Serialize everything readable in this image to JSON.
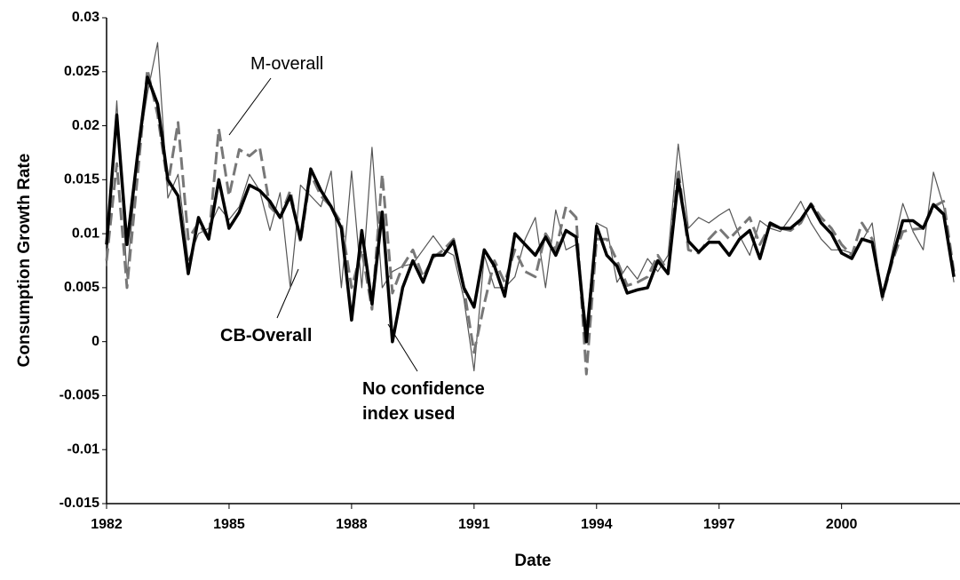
{
  "chart_data": {
    "type": "line",
    "xlabel": "Date",
    "ylabel": "Consumption Growth Rate",
    "x": [
      1982,
      1982.25,
      1982.5,
      1982.75,
      1983,
      1983.25,
      1983.5,
      1983.75,
      1984,
      1984.25,
      1984.5,
      1984.75,
      1985,
      1985.25,
      1985.5,
      1985.75,
      1986,
      1986.25,
      1986.5,
      1986.75,
      1987,
      1987.25,
      1987.5,
      1987.75,
      1988,
      1988.25,
      1988.5,
      1988.75,
      1989,
      1989.25,
      1989.5,
      1989.75,
      1990,
      1990.25,
      1990.5,
      1990.75,
      1991,
      1991.25,
      1991.5,
      1991.75,
      1992,
      1992.25,
      1992.5,
      1992.75,
      1993,
      1993.25,
      1993.5,
      1993.75,
      1994,
      1994.25,
      1994.5,
      1994.75,
      1995,
      1995.25,
      1995.5,
      1995.75,
      1996,
      1996.25,
      1996.5,
      1996.75,
      1997,
      1997.25,
      1997.5,
      1997.75,
      1998,
      1998.25,
      1998.5,
      1998.75,
      1999,
      1999.25,
      1999.5,
      1999.75,
      2000,
      2000.25,
      2000.5,
      2000.75,
      2001,
      2001.25,
      2001.5,
      2001.75,
      2002,
      2002.25,
      2002.5,
      2002.75
    ],
    "series": [
      {
        "name": "No confidence index used",
        "color": "#000000",
        "width": 3.5,
        "dash": false,
        "values": [
          0.009,
          0.021,
          0.009,
          0.017,
          0.0245,
          0.022,
          0.015,
          0.0135,
          0.0063,
          0.0115,
          0.0095,
          0.015,
          0.0105,
          0.012,
          0.0145,
          0.014,
          0.013,
          0.0115,
          0.0135,
          0.0095,
          0.016,
          0.014,
          0.0125,
          0.0105,
          0.002,
          0.0103,
          0.0035,
          0.012,
          0.0,
          0.005,
          0.0075,
          0.0055,
          0.008,
          0.008,
          0.0093,
          0.005,
          0.0032,
          0.0085,
          0.007,
          0.0042,
          0.01,
          0.009,
          0.008,
          0.0097,
          0.008,
          0.0103,
          0.0097,
          0.0,
          0.0107,
          0.008,
          0.007,
          0.0045,
          0.0048,
          0.005,
          0.0075,
          0.0063,
          0.015,
          0.0093,
          0.0083,
          0.0092,
          0.0092,
          0.008,
          0.0095,
          0.0103,
          0.0077,
          0.011,
          0.0105,
          0.0105,
          0.0113,
          0.0127,
          0.011,
          0.01,
          0.0082,
          0.0077,
          0.0095,
          0.0092,
          0.0042,
          0.0078,
          0.0112,
          0.0112,
          0.0105,
          0.0127,
          0.0118,
          0.006
        ]
      },
      {
        "name": "M-overall",
        "color": "#777777",
        "width": 3,
        "dash": true,
        "values": [
          0.0075,
          0.0165,
          0.005,
          0.015,
          0.0252,
          0.021,
          0.0145,
          0.0203,
          0.0095,
          0.011,
          0.0095,
          0.0197,
          0.0135,
          0.0178,
          0.0172,
          0.018,
          0.0125,
          0.0115,
          0.014,
          0.0092,
          0.0155,
          0.0135,
          0.0125,
          0.011,
          0.005,
          0.0085,
          0.003,
          0.0155,
          0.0045,
          0.007,
          0.0085,
          0.006,
          0.0078,
          0.0085,
          0.0095,
          0.005,
          -0.001,
          0.0035,
          0.0075,
          0.0055,
          0.0085,
          0.0065,
          0.006,
          0.01,
          0.0085,
          0.0125,
          0.0115,
          -0.003,
          0.0095,
          0.0095,
          0.0075,
          0.0052,
          0.0055,
          0.006,
          0.008,
          0.0065,
          0.016,
          0.0085,
          0.0082,
          0.0095,
          0.0105,
          0.0095,
          0.0105,
          0.0115,
          0.009,
          0.0108,
          0.0105,
          0.0103,
          0.011,
          0.0128,
          0.0115,
          0.0105,
          0.009,
          0.008,
          0.011,
          0.0095,
          0.004,
          0.0075,
          0.0102,
          0.0104,
          0.0105,
          0.0125,
          0.013,
          0.0065
        ]
      },
      {
        "name": "CB-Overall",
        "color": "#555555",
        "width": 1.2,
        "dash": false,
        "values": [
          0.007,
          0.0223,
          0.006,
          0.017,
          0.023,
          0.0277,
          0.0133,
          0.0155,
          0.0075,
          0.01,
          0.0105,
          0.0125,
          0.0113,
          0.0125,
          0.0155,
          0.014,
          0.0103,
          0.0138,
          0.005,
          0.0145,
          0.0135,
          0.0125,
          0.0158,
          0.005,
          0.0158,
          0.005,
          0.018,
          0.005,
          0.0065,
          0.007,
          0.0072,
          0.0085,
          0.0098,
          0.0085,
          0.008,
          0.004,
          -0.0027,
          0.008,
          0.005,
          0.005,
          0.006,
          0.0095,
          0.0115,
          0.005,
          0.0122,
          0.0085,
          0.009,
          0.0015,
          0.011,
          0.0105,
          0.0055,
          0.007,
          0.0058,
          0.0077,
          0.0065,
          0.008,
          0.0183,
          0.0105,
          0.0115,
          0.011,
          0.0117,
          0.0123,
          0.0098,
          0.008,
          0.0112,
          0.0105,
          0.0102,
          0.0115,
          0.013,
          0.011,
          0.0095,
          0.0085,
          0.0085,
          0.0082,
          0.0093,
          0.011,
          0.0038,
          0.0085,
          0.0128,
          0.0102,
          0.0085,
          0.0157,
          0.0125,
          0.0055
        ]
      }
    ],
    "xlim": [
      1982,
      2002.9
    ],
    "xticks": [
      1982,
      1985,
      1988,
      1991,
      1994,
      1997,
      2000
    ],
    "ylim": [
      -0.015,
      0.03
    ],
    "yticks": [
      0.03,
      0.025,
      0.02,
      0.015,
      0.01,
      0.005,
      0,
      -0.005,
      -0.01,
      -0.015
    ],
    "grid": false
  }
}
